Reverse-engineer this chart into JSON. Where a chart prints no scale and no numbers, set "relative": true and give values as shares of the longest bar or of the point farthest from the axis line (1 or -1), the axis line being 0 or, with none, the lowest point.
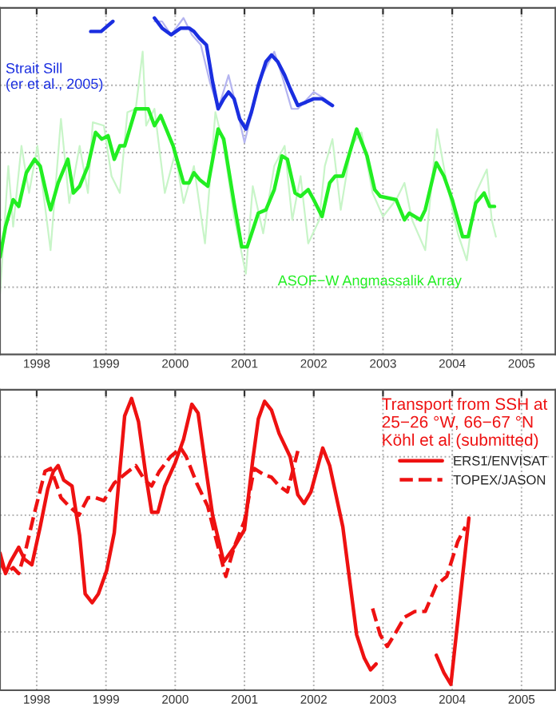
{
  "chart_data": [
    {
      "type": "line",
      "relative": true,
      "xlim": [
        1997.47,
        2005.49
      ],
      "xticks": [
        1998,
        1999,
        2000,
        2001,
        2002,
        2003,
        2004,
        2005
      ],
      "grid": true,
      "legend": false,
      "series": [
        {
          "color": "#c8f5c8",
          "x": [
            1997.47,
            1997.59,
            1997.66,
            1997.78,
            1997.89,
            1998.01,
            1998.2,
            1998.35,
            1998.47,
            1998.62,
            1998.74,
            1998.81,
            1998.97,
            1999.08,
            1999.2,
            1999.31,
            1999.43,
            1999.53,
            1999.58,
            1999.7,
            1999.85,
            2000.0,
            2000.12,
            2000.27,
            2000.43,
            2000.58,
            2000.7,
            2000.85,
            2001.02,
            2001.12,
            2001.27,
            2001.43,
            2001.58,
            2001.69,
            2001.81,
            2001.92,
            2002.08,
            2002.16,
            2002.27,
            2002.39,
            2002.54,
            2002.69,
            2002.85,
            2003.0,
            2003.19,
            2003.31,
            2003.42,
            2003.61,
            2003.78,
            2003.92,
            2004.08,
            2004.21,
            2004.34,
            2004.5,
            2004.57,
            2004.63
          ],
          "values": [
            0.18,
            0.56,
            0.38,
            0.62,
            0.48,
            0.62,
            0.31,
            0.7,
            0.45,
            0.62,
            0.48,
            0.69,
            0.68,
            0.53,
            0.48,
            0.72,
            0.73,
            0.9,
            0.68,
            0.73,
            0.48,
            0.6,
            0.45,
            0.56,
            0.33,
            0.72,
            0.62,
            0.41,
            0.24,
            0.5,
            0.36,
            0.56,
            0.62,
            0.4,
            0.53,
            0.33,
            0.4,
            0.56,
            0.64,
            0.43,
            0.62,
            0.66,
            0.48,
            0.41,
            0.46,
            0.51,
            0.4,
            0.31,
            0.67,
            0.51,
            0.36,
            0.28,
            0.48,
            0.55,
            0.4,
            0.35
          ]
        },
        {
          "color": "#b4b4f0",
          "x": [
            1999.7,
            1999.81,
            1999.94,
            2000.12,
            2000.24,
            2000.37,
            2000.5,
            2000.62,
            2000.77,
            2000.89,
            2001.0,
            2001.12,
            2001.23,
            2001.43,
            2001.54,
            2001.68,
            2001.77,
            2002.0,
            2002.16,
            2002.27
          ],
          "values": [
            0.99,
            0.99,
            0.95,
            1.0,
            0.95,
            0.92,
            0.81,
            0.73,
            0.83,
            0.73,
            0.63,
            0.73,
            0.82,
            0.9,
            0.83,
            0.73,
            0.73,
            0.78,
            0.76,
            0.74
          ]
        },
        {
          "name": "ASOF−W Angmassalik Array",
          "color": "#22ee22",
          "x": [
            1997.47,
            1997.55,
            1997.66,
            1997.74,
            1997.85,
            1997.97,
            1998.05,
            1998.16,
            1998.2,
            1998.31,
            1998.45,
            1998.53,
            1998.62,
            1998.74,
            1998.85,
            1998.94,
            1999.03,
            1999.12,
            1999.2,
            1999.27,
            1999.43,
            1999.51,
            1999.61,
            1999.7,
            1999.79,
            1999.97,
            2000.12,
            2000.2,
            2000.27,
            2000.35,
            2000.47,
            2000.62,
            2000.7,
            2000.85,
            2000.96,
            2001.04,
            2001.2,
            2001.31,
            2001.43,
            2001.54,
            2001.62,
            2001.73,
            2001.81,
            2001.92,
            2002.0,
            2002.12,
            2002.23,
            2002.31,
            2002.42,
            2002.62,
            2002.77,
            2002.88,
            2002.96,
            2003.19,
            2003.31,
            2003.38,
            2003.54,
            2003.61,
            2003.77,
            2003.88,
            2004.0,
            2004.15,
            2004.23,
            2004.34,
            2004.46,
            2004.54,
            2004.61
          ],
          "values": [
            0.29,
            0.38,
            0.46,
            0.44,
            0.54,
            0.58,
            0.56,
            0.46,
            0.43,
            0.51,
            0.58,
            0.48,
            0.5,
            0.56,
            0.66,
            0.64,
            0.65,
            0.58,
            0.62,
            0.62,
            0.73,
            0.73,
            0.73,
            0.68,
            0.71,
            0.62,
            0.51,
            0.51,
            0.54,
            0.52,
            0.5,
            0.67,
            0.64,
            0.45,
            0.32,
            0.32,
            0.42,
            0.43,
            0.49,
            0.59,
            0.58,
            0.48,
            0.47,
            0.49,
            0.46,
            0.41,
            0.51,
            0.53,
            0.53,
            0.67,
            0.59,
            0.49,
            0.47,
            0.46,
            0.4,
            0.42,
            0.4,
            0.43,
            0.57,
            0.53,
            0.46,
            0.35,
            0.35,
            0.45,
            0.48,
            0.44,
            0.44
          ]
        },
        {
          "name": "Strait Sill\n(er et al., 2005)",
          "color": "#1a2ee0",
          "x": [
            1998.78,
            1998.85,
            1998.93,
            1999.1,
            1999.4,
            1999.7,
            1999.81,
            1999.94,
            2000.08,
            2000.2,
            2000.27,
            2000.35,
            2000.45,
            2000.54,
            2000.62,
            2000.7,
            2000.77,
            2000.85,
            2000.93,
            2001.02,
            2001.1,
            2001.2,
            2001.31,
            2001.39,
            2001.48,
            2001.58,
            2001.66,
            2001.77,
            2001.89,
            2002.0,
            2002.12,
            2002.27
          ],
          "values": [
            0.96,
            0.96,
            0.96,
            0.99,
            null,
            1.0,
            0.97,
            0.95,
            0.97,
            0.97,
            0.96,
            0.94,
            0.92,
            0.81,
            0.73,
            0.76,
            0.78,
            0.76,
            0.7,
            0.67,
            0.72,
            0.8,
            0.87,
            0.89,
            0.87,
            0.83,
            0.79,
            0.74,
            0.75,
            0.76,
            0.76,
            0.74
          ]
        }
      ]
    },
    {
      "type": "line",
      "relative": true,
      "xlim": [
        1997.47,
        2005.49
      ],
      "xticks": [
        1998,
        1999,
        2000,
        2001,
        2002,
        2003,
        2004,
        2005
      ],
      "grid": true,
      "legend": "top right",
      "legend_title": "Transport from SSH at\n25−26 °W, 66−67 °N\nKöhl et al (submitted)",
      "series": [
        {
          "name": "ERS1/ENVISAT",
          "color": "#ee1111",
          "line_style": "solid",
          "x": [
            1997.47,
            1997.55,
            1997.62,
            1997.74,
            1997.82,
            1997.93,
            1998.05,
            1998.16,
            1998.24,
            1998.31,
            1998.39,
            1998.51,
            1998.62,
            1998.7,
            1998.8,
            1998.89,
            1999.01,
            1999.12,
            1999.27,
            1999.37,
            1999.47,
            1999.58,
            1999.66,
            1999.75,
            1999.85,
            2000.0,
            2000.12,
            2000.24,
            2000.33,
            2000.43,
            2000.54,
            2000.7,
            2000.85,
            2001.0,
            2001.12,
            2001.2,
            2001.29,
            2001.39,
            2001.5,
            2001.66,
            2001.77,
            2001.86,
            2001.96,
            2002.13,
            2002.23,
            2002.42,
            2002.62,
            2002.73,
            2002.82,
            2002.9,
            2003.4,
            2003.77,
            2003.88,
            2003.98,
            2004.09,
            2004.24
          ],
          "values": [
            0.47,
            0.4,
            0.44,
            0.49,
            0.45,
            0.43,
            0.56,
            0.69,
            0.75,
            0.77,
            0.72,
            0.7,
            0.53,
            0.33,
            0.3,
            0.33,
            0.41,
            0.54,
            0.94,
            1.0,
            0.92,
            0.73,
            0.61,
            0.61,
            0.7,
            0.78,
            0.86,
            0.98,
            0.95,
            0.78,
            0.6,
            0.44,
            0.49,
            0.55,
            0.79,
            0.93,
            0.99,
            0.96,
            0.88,
            0.8,
            0.67,
            0.64,
            0.68,
            0.83,
            0.77,
            0.56,
            0.19,
            0.11,
            0.07,
            0.09,
            null,
            0.12,
            0.06,
            0.02,
            0.26,
            0.59
          ]
        },
        {
          "name": "TOPEX/JASON",
          "color": "#ee1111",
          "line_style": "dashed",
          "x": [
            1997.47,
            1997.56,
            1997.66,
            1997.74,
            1997.85,
            1997.97,
            1998.12,
            1998.2,
            1998.28,
            1998.35,
            1998.47,
            1998.61,
            1998.74,
            1998.85,
            1998.97,
            1999.12,
            1999.27,
            1999.43,
            1999.56,
            1999.66,
            1999.77,
            1999.93,
            2000.08,
            2000.16,
            2000.31,
            2000.47,
            2000.62,
            2000.73,
            2000.85,
            2001.0,
            2001.14,
            2001.27,
            2001.39,
            2001.5,
            2001.62,
            2001.77,
            2002.3,
            2002.85,
            2002.96,
            2003.06,
            2003.19,
            2003.31,
            2003.46,
            2003.61,
            2003.77,
            2003.92,
            2004.08,
            2004.19
          ],
          "values": [
            0.44,
            0.4,
            0.42,
            0.4,
            0.49,
            0.61,
            0.75,
            0.76,
            0.71,
            0.66,
            0.63,
            0.6,
            0.66,
            0.66,
            0.65,
            0.71,
            0.74,
            0.77,
            0.72,
            0.7,
            0.75,
            0.8,
            0.83,
            0.8,
            0.71,
            0.63,
            0.49,
            0.39,
            0.49,
            0.58,
            0.76,
            0.74,
            0.73,
            0.7,
            0.68,
            0.82,
            null,
            0.28,
            0.19,
            0.15,
            0.2,
            0.25,
            0.27,
            0.27,
            0.36,
            0.39,
            0.51,
            0.56
          ]
        }
      ]
    }
  ]
}
